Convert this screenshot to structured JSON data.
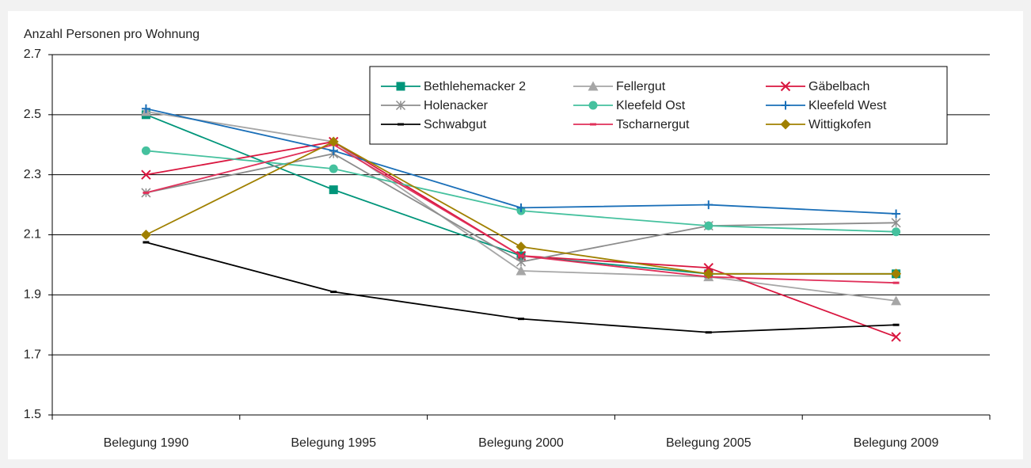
{
  "chart_data": {
    "type": "line",
    "y_label": "Anzahl Personen pro Wohnung",
    "categories": [
      "Belegung 1990",
      "Belegung 1995",
      "Belegung 2000",
      "Belegung 2005",
      "Belegung 2009"
    ],
    "ylim": [
      1.5,
      2.7
    ],
    "yticks": [
      1.5,
      1.7,
      1.9,
      2.1,
      2.3,
      2.5,
      2.7
    ],
    "grid": true,
    "legend": "top-right",
    "series": [
      {
        "name": "Bethlehemacker 2",
        "color": "#00957a",
        "marker": "square",
        "values": [
          2.5,
          2.25,
          2.03,
          1.97,
          1.97
        ]
      },
      {
        "name": "Fellergut",
        "color": "#a6a6a6",
        "marker": "triangle",
        "values": [
          2.51,
          2.41,
          1.98,
          1.96,
          1.88
        ]
      },
      {
        "name": "Gäbelbach",
        "color": "#d9163f",
        "marker": "x",
        "values": [
          2.3,
          2.41,
          2.03,
          1.99,
          1.76
        ]
      },
      {
        "name": "Holenacker",
        "color": "#8c8c8c",
        "marker": "star",
        "values": [
          2.24,
          2.37,
          2.01,
          2.13,
          2.14
        ]
      },
      {
        "name": "Kleefeld Ost",
        "color": "#45c19e",
        "marker": "circle",
        "values": [
          2.38,
          2.32,
          2.18,
          2.13,
          2.11
        ]
      },
      {
        "name": "Kleefeld West",
        "color": "#1a6fb8",
        "marker": "plus",
        "values": [
          2.52,
          2.38,
          2.19,
          2.2,
          2.17
        ]
      },
      {
        "name": "Schwabgut",
        "color": "#000000",
        "marker": "dash",
        "values": [
          2.075,
          1.91,
          1.82,
          1.775,
          1.8
        ]
      },
      {
        "name": "Tscharnergut",
        "color": "#e0305a",
        "marker": "dash",
        "values": [
          2.24,
          2.4,
          2.03,
          1.96,
          1.94
        ]
      },
      {
        "name": "Wittigkofen",
        "color": "#a08000",
        "marker": "diamond",
        "values": [
          2.1,
          2.41,
          2.06,
          1.97,
          1.97
        ]
      }
    ]
  }
}
